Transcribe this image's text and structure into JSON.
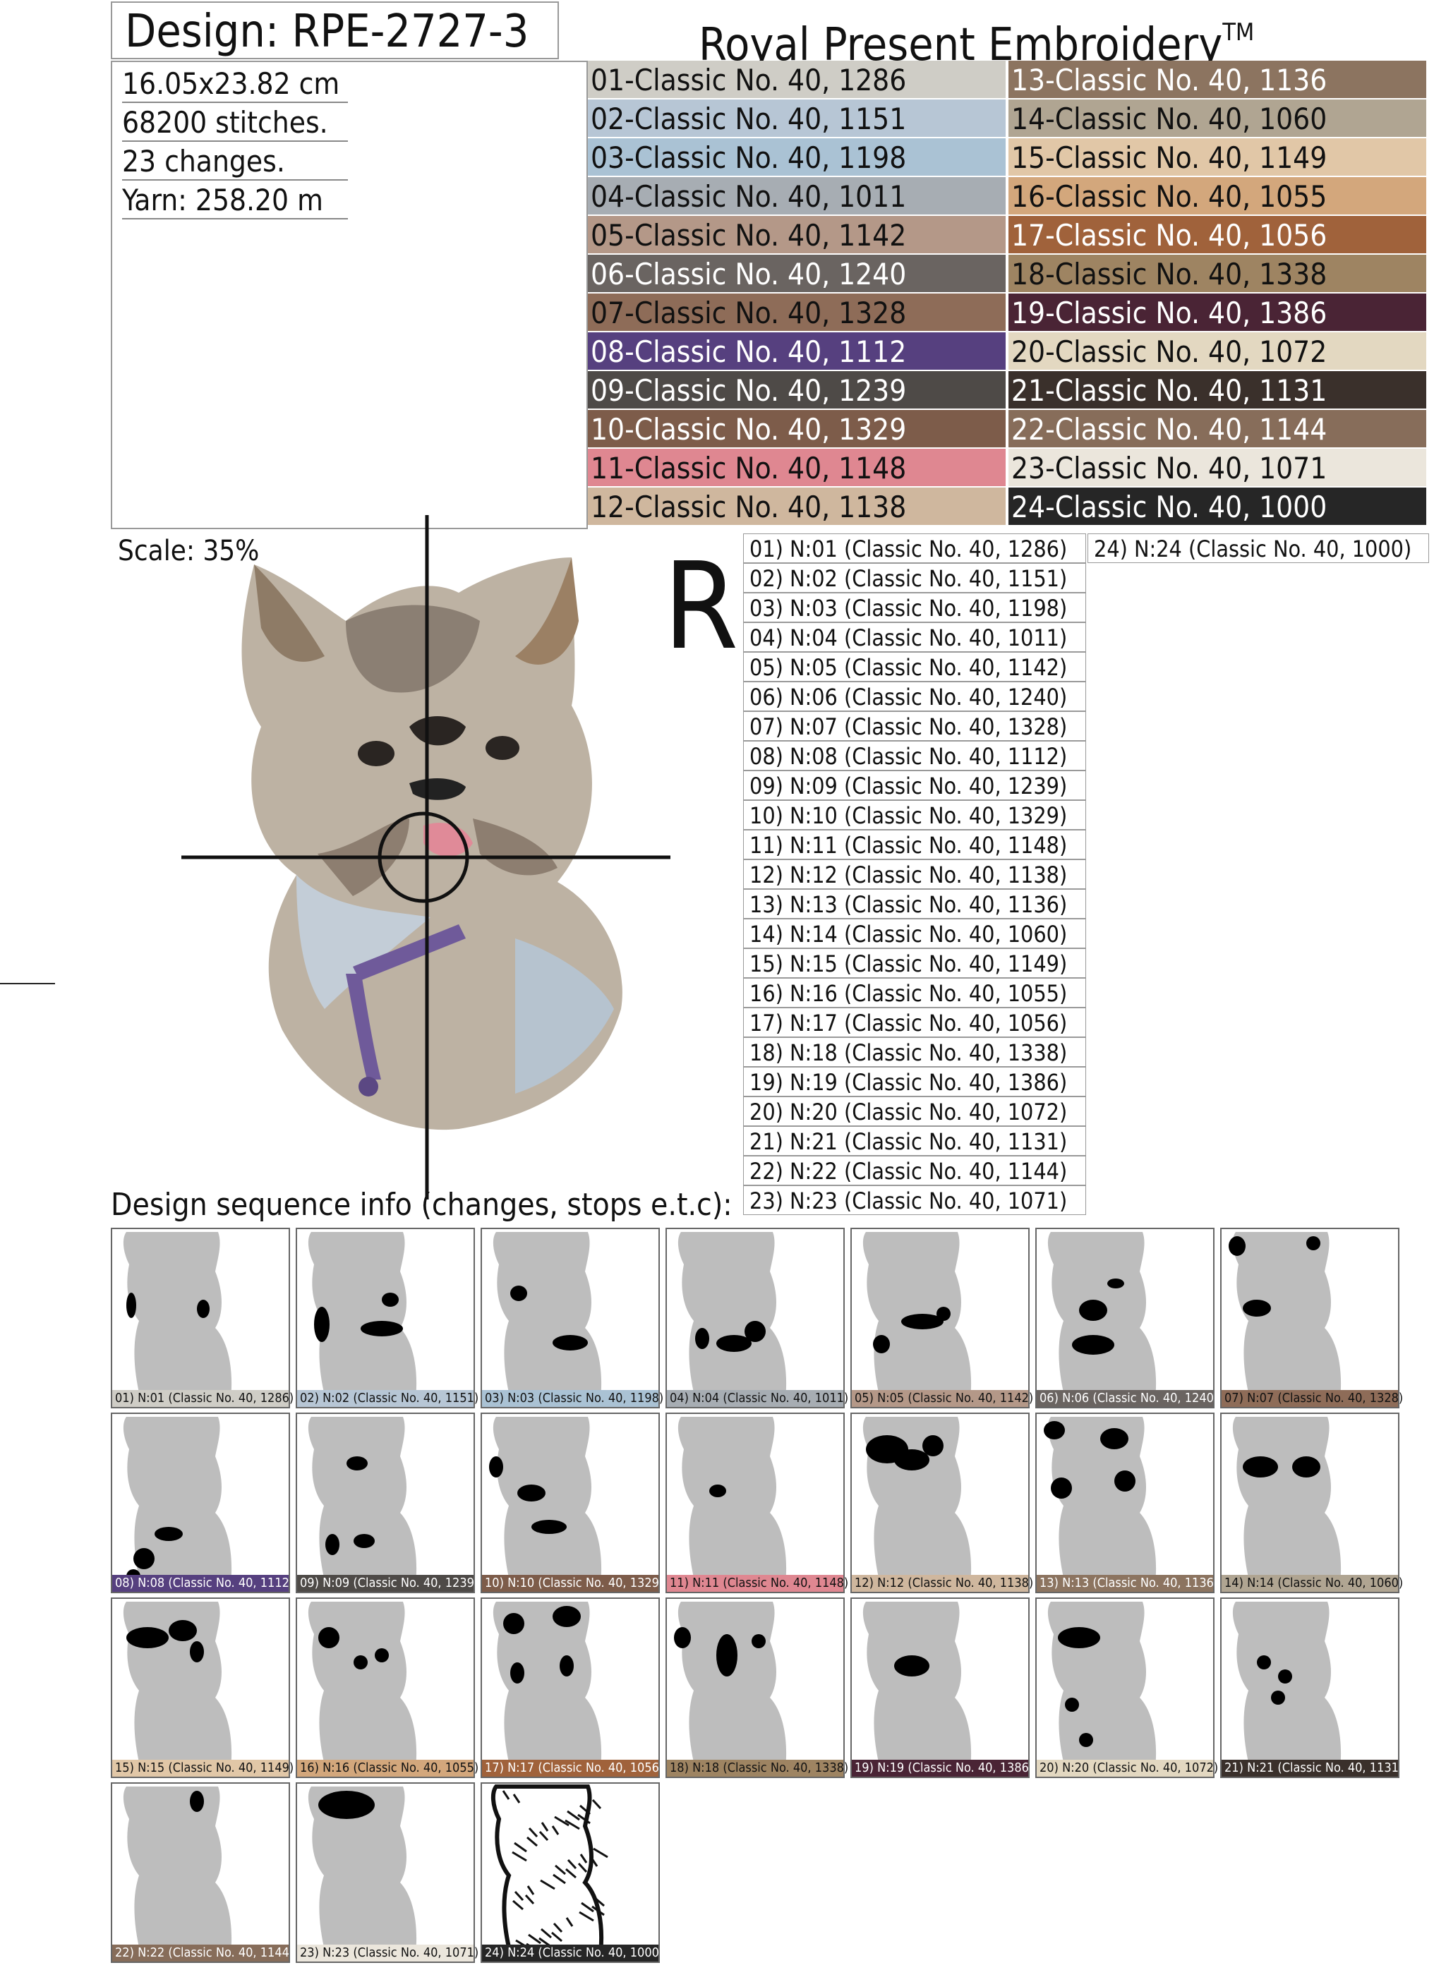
{
  "header": {
    "design_label": "Design: RPE-2727-3",
    "brand": "Royal Present Embroidery",
    "brand_tm": "TM"
  },
  "info": {
    "size": "16.05x23.82 cm",
    "stitches": "68200 stitches.",
    "changes": "23 changes.",
    "yarn": "Yarn: 258.20 m"
  },
  "palette": [
    {
      "label": "01-Classic No. 40, 1286",
      "color": "#cfcdc6",
      "text": "#111"
    },
    {
      "label": "02-Classic No. 40, 1151",
      "color": "#b7c6d5",
      "text": "#111"
    },
    {
      "label": "03-Classic No. 40, 1198",
      "color": "#aac2d4",
      "text": "#111"
    },
    {
      "label": "04-Classic No. 40, 1011",
      "color": "#a7adb3",
      "text": "#111"
    },
    {
      "label": "05-Classic No. 40, 1142",
      "color": "#b49888",
      "text": "#111"
    },
    {
      "label": "06-Classic No. 40, 1240",
      "color": "#6a6461",
      "text": "#fff"
    },
    {
      "label": "07-Classic No. 40, 1328",
      "color": "#8e6c58",
      "text": "#111"
    },
    {
      "label": "08-Classic No. 40, 1112",
      "color": "#56407f",
      "text": "#fff"
    },
    {
      "label": "09-Classic No. 40, 1239",
      "color": "#4e4a47",
      "text": "#fff"
    },
    {
      "label": "10-Classic No. 40, 1329",
      "color": "#7d5c4a",
      "text": "#fff"
    },
    {
      "label": "11-Classic No. 40, 1148",
      "color": "#df8791",
      "text": "#111"
    },
    {
      "label": "12-Classic No. 40, 1138",
      "color": "#cfb79e",
      "text": "#111"
    },
    {
      "label": "13-Classic No. 40, 1136",
      "color": "#8c7460",
      "text": "#fff"
    },
    {
      "label": "14-Classic No. 40, 1060",
      "color": "#b0a592",
      "text": "#111"
    },
    {
      "label": "15-Classic No. 40, 1149",
      "color": "#e1c7a7",
      "text": "#111"
    },
    {
      "label": "16-Classic No. 40, 1055",
      "color": "#d3a77c",
      "text": "#111"
    },
    {
      "label": "17-Classic No. 40, 1056",
      "color": "#a0623b",
      "text": "#fff"
    },
    {
      "label": "18-Classic No. 40, 1338",
      "color": "#9e8462",
      "text": "#111"
    },
    {
      "label": "19-Classic No. 40, 1386",
      "color": "#4a2435",
      "text": "#fff"
    },
    {
      "label": "20-Classic No. 40, 1072",
      "color": "#e3d8c1",
      "text": "#111"
    },
    {
      "label": "21-Classic No. 40, 1131",
      "color": "#3a302b",
      "text": "#fff"
    },
    {
      "label": "22-Classic No. 40, 1144",
      "color": "#876d5a",
      "text": "#fff"
    },
    {
      "label": "23-Classic No. 40, 1071",
      "color": "#ebe6dc",
      "text": "#111"
    },
    {
      "label": "24-Classic No. 40, 1000",
      "color": "#262626",
      "text": "#fff"
    }
  ],
  "scale": "Scale: 35%",
  "reverse_mark": "R",
  "sequence": [
    "01) N:01 (Classic No. 40, 1286)",
    "02) N:02 (Classic No. 40, 1151)",
    "03) N:03 (Classic No. 40, 1198)",
    "04) N:04 (Classic No. 40, 1011)",
    "05) N:05 (Classic No. 40, 1142)",
    "06) N:06 (Classic No. 40, 1240)",
    "07) N:07 (Classic No. 40, 1328)",
    "08) N:08 (Classic No. 40, 1112)",
    "09) N:09 (Classic No. 40, 1239)",
    "10) N:10 (Classic No. 40, 1329)",
    "11) N:11 (Classic No. 40, 1148)",
    "12) N:12 (Classic No. 40, 1138)",
    "13) N:13 (Classic No. 40, 1136)",
    "14) N:14 (Classic No. 40, 1060)",
    "15) N:15 (Classic No. 40, 1149)",
    "16) N:16 (Classic No. 40, 1055)",
    "17) N:17 (Classic No. 40, 1056)",
    "18) N:18 (Classic No. 40, 1338)",
    "19) N:19 (Classic No. 40, 1386)",
    "20) N:20 (Classic No. 40, 1072)",
    "21) N:21 (Classic No. 40, 1131)",
    "22) N:22 (Classic No. 40, 1144)",
    "23) N:23 (Classic No. 40, 1071)",
    "24) N:24 (Classic No. 40, 1000)"
  ],
  "sequence_title": "Design sequence info (changes, stops e.t.c):",
  "thumbnails": [
    {
      "label": "01) N:01 (Classic No. 40, 1286)",
      "color": "#cfcdc6",
      "text": "#111"
    },
    {
      "label": "02) N:02 (Classic No. 40, 1151)",
      "color": "#b7c6d5",
      "text": "#111"
    },
    {
      "label": "03) N:03 (Classic No. 40, 1198)",
      "color": "#aac2d4",
      "text": "#111"
    },
    {
      "label": "04) N:04 (Classic No. 40, 1011)",
      "color": "#a7adb3",
      "text": "#111"
    },
    {
      "label": "05) N:05 (Classic No. 40, 1142)",
      "color": "#b49888",
      "text": "#111"
    },
    {
      "label": "06) N:06 (Classic No. 40, 1240)",
      "color": "#6a6461",
      "text": "#fff"
    },
    {
      "label": "07) N:07 (Classic No. 40, 1328)",
      "color": "#8e6c58",
      "text": "#111"
    },
    {
      "label": "08) N:08 (Classic No. 40, 1112)",
      "color": "#56407f",
      "text": "#fff"
    },
    {
      "label": "09) N:09 (Classic No. 40, 1239)",
      "color": "#4e4a47",
      "text": "#fff"
    },
    {
      "label": "10) N:10 (Classic No. 40, 1329)",
      "color": "#7d5c4a",
      "text": "#fff"
    },
    {
      "label": "11) N:11 (Classic No. 40, 1148)",
      "color": "#df8791",
      "text": "#111"
    },
    {
      "label": "12) N:12 (Classic No. 40, 1138)",
      "color": "#cfb79e",
      "text": "#111"
    },
    {
      "label": "13) N:13 (Classic No. 40, 1136)",
      "color": "#8c7460",
      "text": "#fff"
    },
    {
      "label": "14) N:14 (Classic No. 40, 1060)",
      "color": "#b0a592",
      "text": "#111"
    },
    {
      "label": "15) N:15 (Classic No. 40, 1149)",
      "color": "#e1c7a7",
      "text": "#111"
    },
    {
      "label": "16) N:16 (Classic No. 40, 1055)",
      "color": "#d3a77c",
      "text": "#111"
    },
    {
      "label": "17) N:17 (Classic No. 40, 1056)",
      "color": "#a0623b",
      "text": "#fff"
    },
    {
      "label": "18) N:18 (Classic No. 40, 1338)",
      "color": "#9e8462",
      "text": "#111"
    },
    {
      "label": "19) N:19 (Classic No. 40, 1386)",
      "color": "#4a2435",
      "text": "#fff"
    },
    {
      "label": "20) N:20 (Classic No. 40, 1072)",
      "color": "#e3d8c1",
      "text": "#111"
    },
    {
      "label": "21) N:21 (Classic No. 40, 1131)",
      "color": "#3a302b",
      "text": "#fff"
    },
    {
      "label": "22) N:22 (Classic No. 40, 1144)",
      "color": "#876d5a",
      "text": "#fff"
    },
    {
      "label": "23) N:23 (Classic No. 40, 1071)",
      "color": "#ebe6dc",
      "text": "#111"
    },
    {
      "label": "24) N:24 (Classic No. 40, 1000)",
      "color": "#262626",
      "text": "#fff"
    }
  ]
}
